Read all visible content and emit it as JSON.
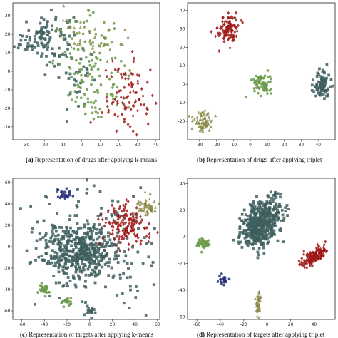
{
  "colors": {
    "slate": "#3f5f5f",
    "green": "#6b9a4a",
    "olive": "#8c8c4a",
    "red": "#a01818",
    "navy": "#27307a"
  },
  "chart_data": [
    {
      "type": "scatter",
      "caption_letter": "(a)",
      "caption_text": "Representation of drugs after applying k-means",
      "xlim": [
        -37,
        42
      ],
      "ylim": [
        -37,
        37
      ],
      "xticks": [
        -30,
        -20,
        -10,
        0,
        10,
        20,
        30,
        40
      ],
      "yticks": [
        -30,
        -20,
        -10,
        0,
        10,
        20,
        30
      ],
      "series": [
        {
          "color": "slate",
          "marker": "square",
          "clusters": [
            {
              "cx": -20,
              "cy": 18,
              "sx": 8,
              "sy": 7,
              "n": 120
            },
            {
              "cx": -2,
              "cy": -8,
              "sx": 5,
              "sy": 10,
              "n": 25
            }
          ]
        },
        {
          "color": "green",
          "marker": "circle",
          "clusters": [
            {
              "cx": 5,
              "cy": 5,
              "sx": 10,
              "sy": 12,
              "n": 110
            },
            {
              "cx": 10,
              "cy": -15,
              "sx": 8,
              "sy": 6,
              "n": 30
            }
          ]
        },
        {
          "color": "olive",
          "marker": "triangle",
          "clusters": [
            {
              "cx": 2,
              "cy": 22,
              "sx": 10,
              "sy": 8,
              "n": 40
            }
          ]
        },
        {
          "color": "red",
          "marker": "diamond",
          "clusters": [
            {
              "cx": 25,
              "cy": -15,
              "sx": 7,
              "sy": 10,
              "n": 90
            }
          ]
        }
      ]
    },
    {
      "type": "scatter",
      "caption_letter": "(b)",
      "caption_text": "Representation of drugs after applying triplet",
      "xlim": [
        -37,
        50
      ],
      "ylim": [
        -30,
        44
      ],
      "xticks": [
        -30,
        -20,
        -10,
        0,
        10,
        20,
        30,
        40
      ],
      "yticks": [
        -20,
        -10,
        0,
        10,
        20,
        30,
        40
      ],
      "series": [
        {
          "color": "red",
          "marker": "diamond",
          "clusters": [
            {
              "cx": -13,
              "cy": 30,
              "sx": 3,
              "sy": 4,
              "n": 100
            }
          ]
        },
        {
          "color": "green",
          "marker": "circle",
          "clusters": [
            {
              "cx": 7,
              "cy": 0,
              "sx": 3,
              "sy": 3,
              "n": 70
            }
          ]
        },
        {
          "color": "slate",
          "marker": "square",
          "clusters": [
            {
              "cx": 42,
              "cy": 0,
              "sx": 2.5,
              "sy": 4,
              "n": 90
            }
          ]
        },
        {
          "color": "olive",
          "marker": "triangle",
          "clusters": [
            {
              "cx": -28,
              "cy": -20,
              "sx": 3,
              "sy": 3,
              "n": 70
            }
          ]
        }
      ]
    },
    {
      "type": "scatter",
      "caption_letter": "(c)",
      "caption_text": "Representation of targets after applying k-means",
      "xlim": [
        -68,
        62
      ],
      "ylim": [
        -68,
        64
      ],
      "xticks": [
        -60,
        -40,
        -20,
        0,
        20,
        40,
        60
      ],
      "yticks": [
        -60,
        -40,
        -20,
        0,
        20,
        40,
        60
      ],
      "series": [
        {
          "color": "slate",
          "marker": "square",
          "clusters": [
            {
              "cx": -10,
              "cy": -5,
              "sx": 16,
              "sy": 13,
              "n": 400
            },
            {
              "cx": 0,
              "cy": 0,
              "sx": 32,
              "sy": 28,
              "n": 200
            },
            {
              "cx": 0,
              "cy": -60,
              "sx": 2,
              "sy": 2,
              "n": 15
            }
          ]
        },
        {
          "color": "red",
          "marker": "diamond",
          "clusters": [
            {
              "cx": 32,
              "cy": 20,
              "sx": 10,
              "sy": 10,
              "n": 150
            }
          ]
        },
        {
          "color": "olive",
          "marker": "triangle",
          "clusters": [
            {
              "cx": 50,
              "cy": 38,
              "sx": 5,
              "sy": 5,
              "n": 50
            }
          ]
        },
        {
          "color": "green",
          "marker": "circle",
          "clusters": [
            {
              "cx": -40,
              "cy": -40,
              "sx": 3,
              "sy": 3,
              "n": 30
            },
            {
              "cx": -20,
              "cy": -52,
              "sx": 3,
              "sy": 2,
              "n": 20
            }
          ]
        },
        {
          "color": "navy",
          "marker": "circle",
          "clusters": [
            {
              "cx": -22,
              "cy": 50,
              "sx": 3,
              "sy": 3,
              "n": 25
            }
          ]
        }
      ]
    },
    {
      "type": "scatter",
      "caption_letter": "(d)",
      "caption_text": "Representation of targets after applying triplet",
      "xlim": [
        -68,
        58
      ],
      "ylim": [
        -62,
        44
      ],
      "xticks": [
        -60,
        -40,
        -20,
        0,
        20,
        40
      ],
      "yticks": [
        -60,
        -40,
        -20,
        0,
        20,
        40
      ],
      "series": [
        {
          "color": "slate",
          "marker": "square",
          "clusters": [
            {
              "cx": -5,
              "cy": 10,
              "sx": 10,
              "sy": 7,
              "n": 500,
              "tilt": 0.9
            }
          ]
        },
        {
          "color": "red",
          "marker": "diamond",
          "clusters": [
            {
              "cx": 40,
              "cy": -15,
              "sx": 6,
              "sy": 2.5,
              "n": 150,
              "tilt": 0.5
            }
          ]
        },
        {
          "color": "green",
          "marker": "circle",
          "clusters": [
            {
              "cx": -55,
              "cy": -5,
              "sx": 2,
              "sy": 4,
              "n": 40,
              "tilt": 1.2
            }
          ]
        },
        {
          "color": "olive",
          "marker": "triangle",
          "clusters": [
            {
              "cx": -8,
              "cy": -50,
              "sx": 1.2,
              "sy": 4,
              "n": 40
            }
          ]
        },
        {
          "color": "navy",
          "marker": "circle",
          "clusters": [
            {
              "cx": -38,
              "cy": -33,
              "sx": 2,
              "sy": 2,
              "n": 20
            }
          ]
        }
      ]
    }
  ]
}
